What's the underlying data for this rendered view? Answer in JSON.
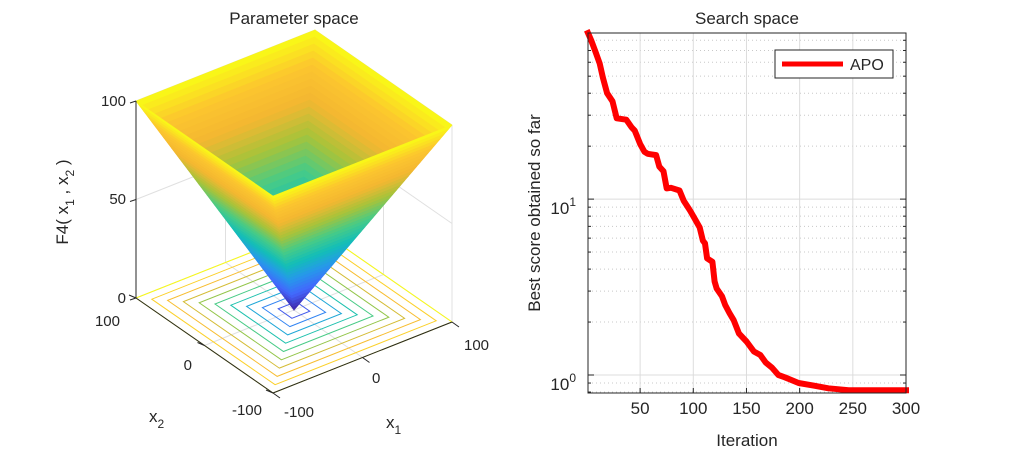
{
  "figure": {
    "background": "#ffffff"
  },
  "chart_data": [
    {
      "type": "surface3d",
      "title": "Parameter space",
      "function_name": "F4",
      "formula": "max(|x1|, |x2|)",
      "xlabel": "x",
      "xlabel_sub": "1",
      "ylabel": "x",
      "ylabel_sub": "2",
      "zlabel_parts": [
        "F4( x",
        "1",
        " , x",
        "2",
        " )"
      ],
      "xlim": [
        -100,
        100
      ],
      "ylim": [
        -100,
        100
      ],
      "zlim": [
        0,
        100
      ],
      "xticks": [
        "-100",
        "0",
        "100"
      ],
      "yticks": [
        "-100",
        "0",
        "100"
      ],
      "zticks": [
        "0",
        "50",
        "100"
      ],
      "contour_levels": [
        10,
        20,
        30,
        40,
        50,
        60,
        70,
        80,
        90,
        100
      ],
      "colormap": "parula",
      "colormap_stops": [
        "#3e26a8",
        "#4367fd",
        "#2797eb",
        "#13beb8",
        "#48cb86",
        "#a6c33a",
        "#f3b731",
        "#fcc52f",
        "#f9fb15"
      ]
    },
    {
      "type": "line",
      "title": "Search space",
      "xlabel": "Iteration",
      "ylabel": "Best score obtained so far",
      "yscale": "log",
      "xlim": [
        1,
        300
      ],
      "ylim": [
        0.79,
        88
      ],
      "xticks": [
        50,
        100,
        150,
        200,
        250,
        300
      ],
      "yticks": [
        {
          "value": 1,
          "base": "10",
          "exp": "0"
        },
        {
          "value": 10,
          "base": "10",
          "exp": "1"
        }
      ],
      "grid": true,
      "legend_position": "top-right",
      "series": [
        {
          "name": "APO",
          "color": "#ff0000",
          "x": [
            1,
            4,
            8,
            12,
            15,
            19,
            24,
            28,
            37,
            42,
            45,
            50,
            54,
            57,
            65,
            68,
            72,
            75,
            79,
            87,
            91,
            97,
            101,
            106,
            109,
            111,
            113,
            118,
            120,
            122,
            127,
            130,
            134,
            138,
            143,
            150,
            157,
            163,
            168,
            174,
            180,
            186,
            199,
            213,
            227,
            246,
            300
          ],
          "values": [
            88,
            80,
            69,
            59,
            49,
            40,
            36,
            28.8,
            28.3,
            25.6,
            24.5,
            20.6,
            18.6,
            18.1,
            17.8,
            15.3,
            14.4,
            11.5,
            11.6,
            11.2,
            9.8,
            8.6,
            7.8,
            6.9,
            5.8,
            5.6,
            4.6,
            4.4,
            3.4,
            3.1,
            2.8,
            2.5,
            2.25,
            2.05,
            1.72,
            1.55,
            1.36,
            1.3,
            1.18,
            1.1,
            1.0,
            0.97,
            0.9,
            0.87,
            0.84,
            0.82,
            0.82
          ]
        }
      ]
    }
  ]
}
